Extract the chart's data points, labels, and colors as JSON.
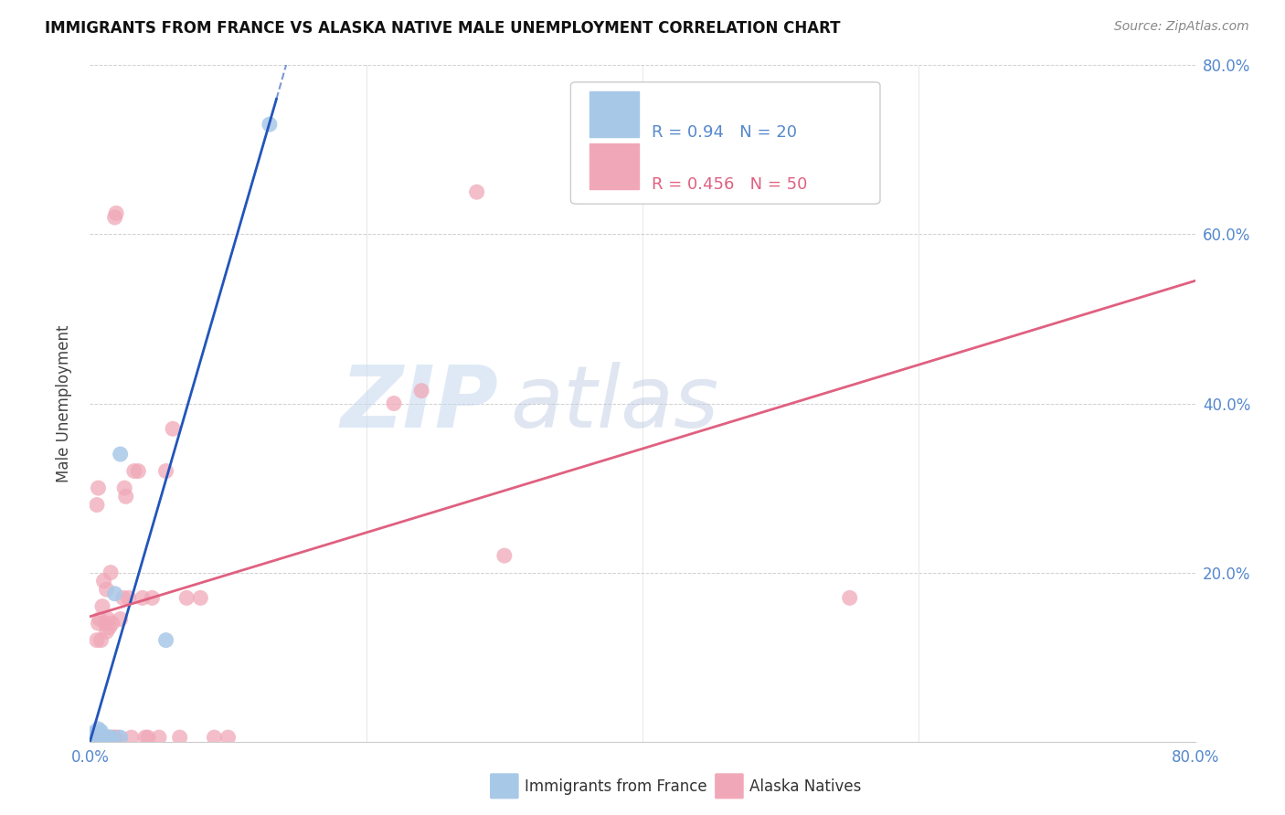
{
  "title": "IMMIGRANTS FROM FRANCE VS ALASKA NATIVE MALE UNEMPLOYMENT CORRELATION CHART",
  "source": "Source: ZipAtlas.com",
  "ylabel": "Male Unemployment",
  "xlim": [
    0.0,
    0.8
  ],
  "ylim": [
    0.0,
    0.8
  ],
  "france_R": 0.94,
  "france_N": 20,
  "alaska_R": 0.456,
  "alaska_N": 50,
  "france_color": "#a8c8e8",
  "alaska_color": "#f0a8b8",
  "france_line_color": "#2255bb",
  "alaska_line_color": "#e06080",
  "watermark_zip": "ZIP",
  "watermark_atlas": "atlas",
  "france_points_x": [
    0.001,
    0.002,
    0.003,
    0.004,
    0.005,
    0.006,
    0.007,
    0.008,
    0.009,
    0.01,
    0.011,
    0.012,
    0.013,
    0.014,
    0.015,
    0.018,
    0.022,
    0.055,
    0.13,
    0.022
  ],
  "france_points_y": [
    0.005,
    0.01,
    0.005,
    0.008,
    0.005,
    0.015,
    0.005,
    0.012,
    0.005,
    0.005,
    0.005,
    0.005,
    0.005,
    0.005,
    0.005,
    0.175,
    0.34,
    0.12,
    0.73,
    0.005
  ],
  "alaska_points_x": [
    0.001,
    0.002,
    0.003,
    0.004,
    0.005,
    0.005,
    0.006,
    0.006,
    0.007,
    0.008,
    0.009,
    0.01,
    0.01,
    0.011,
    0.012,
    0.012,
    0.013,
    0.014,
    0.015,
    0.016,
    0.017,
    0.018,
    0.018,
    0.019,
    0.02,
    0.022,
    0.024,
    0.025,
    0.026,
    0.028,
    0.03,
    0.032,
    0.035,
    0.038,
    0.04,
    0.042,
    0.045,
    0.05,
    0.055,
    0.06,
    0.065,
    0.07,
    0.08,
    0.09,
    0.1,
    0.22,
    0.24,
    0.28,
    0.55,
    0.3
  ],
  "alaska_points_y": [
    0.005,
    0.005,
    0.005,
    0.005,
    0.12,
    0.28,
    0.14,
    0.3,
    0.145,
    0.12,
    0.16,
    0.19,
    0.005,
    0.14,
    0.18,
    0.13,
    0.145,
    0.135,
    0.2,
    0.14,
    0.005,
    0.62,
    0.005,
    0.625,
    0.005,
    0.145,
    0.17,
    0.3,
    0.29,
    0.17,
    0.005,
    0.32,
    0.32,
    0.17,
    0.005,
    0.005,
    0.17,
    0.005,
    0.32,
    0.37,
    0.005,
    0.17,
    0.17,
    0.005,
    0.005,
    0.4,
    0.415,
    0.65,
    0.17,
    0.22
  ],
  "france_line_x_start": 0.0,
  "france_line_x_end": 0.135,
  "alaska_line_x_start": 0.0,
  "alaska_line_x_end": 0.8,
  "alaska_line_y_start": 0.148,
  "alaska_line_y_end": 0.545,
  "france_line_y_start": 0.0,
  "france_line_y_end": 0.76
}
